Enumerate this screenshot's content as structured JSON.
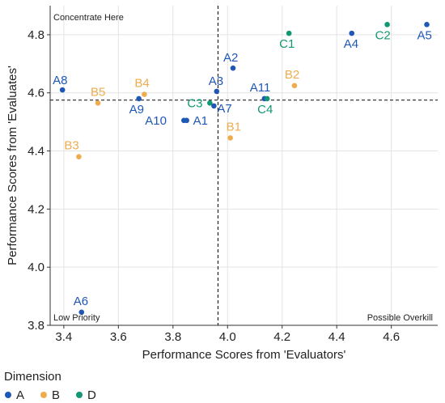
{
  "chart_data": {
    "type": "scatter",
    "xlabel": "Performance Scores from 'Evaluators'",
    "ylabel": "Performance Scores from 'Evaluates'",
    "xlim": [
      3.35,
      4.77
    ],
    "ylim": [
      3.8,
      4.9
    ],
    "xticks": [
      "3.4",
      "3.6",
      "3.8",
      "4.0",
      "4.2",
      "4.4",
      "4.6"
    ],
    "yticks": [
      "3.8",
      "4.0",
      "4.2",
      "4.4",
      "4.6",
      "4.8"
    ],
    "xtick_values": [
      3.4,
      3.6,
      3.8,
      4.0,
      4.2,
      4.4,
      4.6
    ],
    "ytick_values": [
      3.8,
      4.0,
      4.2,
      4.4,
      4.6,
      4.8
    ],
    "x_mean": 3.965,
    "y_mean": 4.575,
    "grid": true,
    "quadrant_labels": {
      "top_left": "Concentrate Here",
      "bottom_left": "Low Priority",
      "bottom_right": "Possible Overkill"
    },
    "legend": {
      "title": "Dimension",
      "position": "bottom-left",
      "entries": [
        {
          "label": "A",
          "color": "#1f57b5"
        },
        {
          "label": "B",
          "color": "#efac4f"
        },
        {
          "label": "D",
          "color": "#139773"
        }
      ]
    },
    "points": [
      {
        "label": "A1",
        "group": "A",
        "x": 3.85,
        "y": 4.505,
        "label_dx": 8,
        "label_dy": 5
      },
      {
        "label": "A2",
        "group": "A",
        "x": 4.02,
        "y": 4.685,
        "label_dx": -12,
        "label_dy": -8
      },
      {
        "label": "A3",
        "group": "A",
        "x": 3.96,
        "y": 4.605,
        "label_dx": -10,
        "label_dy": -8
      },
      {
        "label": "A4",
        "group": "A",
        "x": 4.455,
        "y": 4.805,
        "label_dx": -10,
        "label_dy": 18
      },
      {
        "label": "A5",
        "group": "A",
        "x": 4.73,
        "y": 4.835,
        "label_dx": -12,
        "label_dy": 18
      },
      {
        "label": "A6",
        "group": "A",
        "x": 3.465,
        "y": 3.845,
        "label_dx": -10,
        "label_dy": -9
      },
      {
        "label": "A7",
        "group": "A",
        "x": 3.95,
        "y": 4.555,
        "label_dx": 4,
        "label_dy": 8
      },
      {
        "label": "A8",
        "group": "A",
        "x": 3.395,
        "y": 4.61,
        "label_dx": -12,
        "label_dy": -7
      },
      {
        "label": "A9",
        "group": "A",
        "x": 3.675,
        "y": 4.58,
        "label_dx": -12,
        "label_dy": 18
      },
      {
        "label": "A10",
        "group": "A",
        "x": 3.84,
        "y": 4.505,
        "label_dx": -48,
        "label_dy": 5
      },
      {
        "label": "A11",
        "group": "A",
        "x": 4.135,
        "y": 4.58,
        "label_dx": -18,
        "label_dy": -9
      },
      {
        "label": "B1",
        "group": "B",
        "x": 4.01,
        "y": 4.445,
        "label_dx": -5,
        "label_dy": -9
      },
      {
        "label": "B2",
        "group": "B",
        "x": 4.245,
        "y": 4.625,
        "label_dx": -12,
        "label_dy": -9
      },
      {
        "label": "B3",
        "group": "B",
        "x": 3.455,
        "y": 4.38,
        "label_dx": -18,
        "label_dy": -9
      },
      {
        "label": "B4",
        "group": "B",
        "x": 3.695,
        "y": 4.595,
        "label_dx": -12,
        "label_dy": -9
      },
      {
        "label": "B5",
        "group": "B",
        "x": 3.525,
        "y": 4.565,
        "label_dx": -9,
        "label_dy": -9
      },
      {
        "label": "C1",
        "group": "D",
        "x": 4.225,
        "y": 4.805,
        "label_dx": -12,
        "label_dy": 18
      },
      {
        "label": "C2",
        "group": "D",
        "x": 4.585,
        "y": 4.835,
        "label_dx": -15,
        "label_dy": 18
      },
      {
        "label": "C3",
        "group": "D",
        "x": 3.935,
        "y": 4.565,
        "label_dx": -28,
        "label_dy": 5
      },
      {
        "label": "C4",
        "group": "D",
        "x": 4.145,
        "y": 4.58,
        "label_dx": -12,
        "label_dy": 18
      }
    ]
  }
}
